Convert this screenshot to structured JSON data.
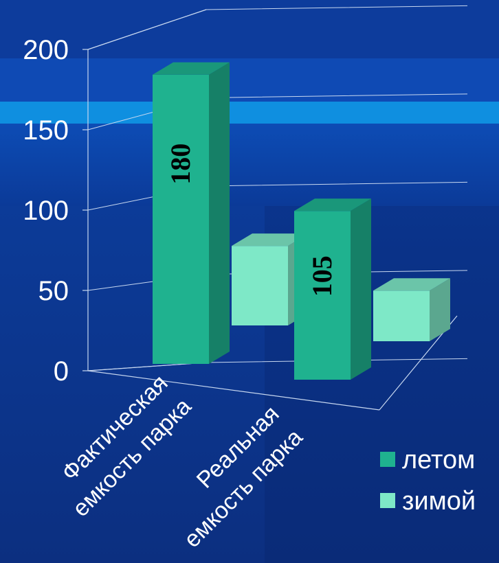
{
  "chart_data": {
    "type": "bar",
    "categories": [
      "Фактическая\nемкость парка",
      "Реальная\nемкость парка"
    ],
    "series": [
      {
        "name": "летом",
        "values": [
          180,
          105
        ],
        "color": "#1fb28f",
        "labels": [
          "180",
          "105"
        ]
      },
      {
        "name": "зимой",
        "values": [
          55,
          35
        ],
        "color": "#7ee8c7",
        "labels": [
          "",
          ""
        ]
      }
    ],
    "yticks": [
      "0",
      "50",
      "100",
      "150",
      "200"
    ],
    "ylim": [
      0,
      200
    ],
    "grid": true,
    "legend_position": "bottom-right",
    "three_d": true
  }
}
